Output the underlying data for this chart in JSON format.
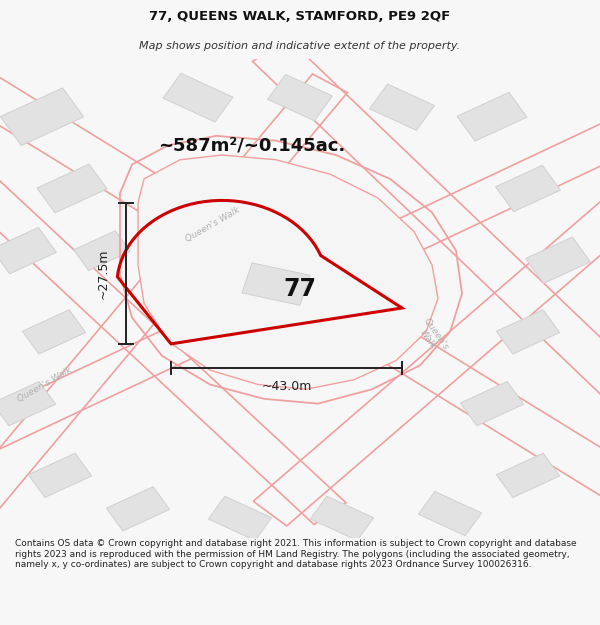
{
  "title": "77, QUEENS WALK, STAMFORD, PE9 2QF",
  "subtitle": "Map shows position and indicative extent of the property.",
  "footer": "Contains OS data © Crown copyright and database right 2021. This information is subject to Crown copyright and database rights 2023 and is reproduced with the permission of HM Land Registry. The polygons (including the associated geometry, namely x, y co-ordinates) are subject to Crown copyright and database rights 2023 Ordnance Survey 100026316.",
  "area_label": "~587m²/~0.145ac.",
  "width_label": "~43.0m",
  "height_label": "~27.5m",
  "number_label": "77",
  "bg_color": "#f7f7f7",
  "map_bg": "#f5f5f5",
  "plot_outline_color": "#cc0000",
  "road_color": "#f0a0a0",
  "road_fill": "#f5f5f5",
  "building_color": "#e2e2e2",
  "building_outline": "#d0d0d0",
  "road_label_color": "#b0b0b0",
  "dim_line_color": "#222222",
  "title_fontsize": 9.5,
  "subtitle_fontsize": 8,
  "footer_fontsize": 6.5,
  "area_fontsize": 13,
  "number_fontsize": 17,
  "dim_fontsize": 9
}
